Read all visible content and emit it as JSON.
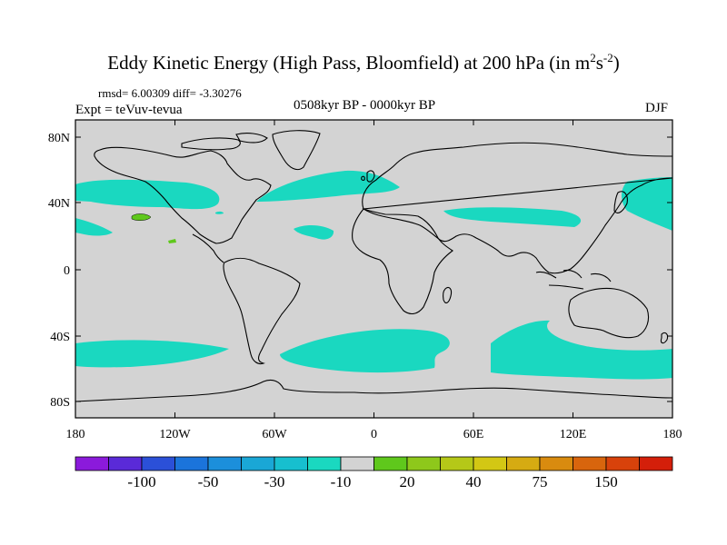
{
  "title_main": "Eddy Kinetic Energy (High Pass, Bloomfield) at 200 hPa (in m",
  "title_unit_exp1": "2",
  "title_unit_s": "s",
  "title_unit_exp2": "-2",
  "title_close": ")",
  "stats": "rmsd= 6.00309 diff= -3.30276",
  "expt": "Expt = teVuv-tevua",
  "period": "0508kyr BP - 0000kyr BP",
  "season": "DJF",
  "map": {
    "ocean_color": "#d3d3d3",
    "coast_color": "#000000",
    "lat_ticks": [
      "80N",
      "40N",
      "0",
      "40S",
      "80S"
    ],
    "lon_ticks": [
      "180",
      "120W",
      "60W",
      "0",
      "60E",
      "120E",
      "180"
    ]
  },
  "colorbar": {
    "colors": [
      "#8b1adb",
      "#5a2ad8",
      "#2b50d8",
      "#1b74db",
      "#1c8fdb",
      "#1aa7d6",
      "#17bfcf",
      "#1ad8c0",
      "#d3d3d3",
      "#5fc81c",
      "#8ec81b",
      "#b5c818",
      "#d3c714",
      "#d6ab12",
      "#d98b0f",
      "#d8650d",
      "#d8420b",
      "#d41f0a"
    ],
    "labels": [
      "-100",
      "-50",
      "-30",
      "-10",
      "20",
      "40",
      "75",
      "150"
    ]
  }
}
